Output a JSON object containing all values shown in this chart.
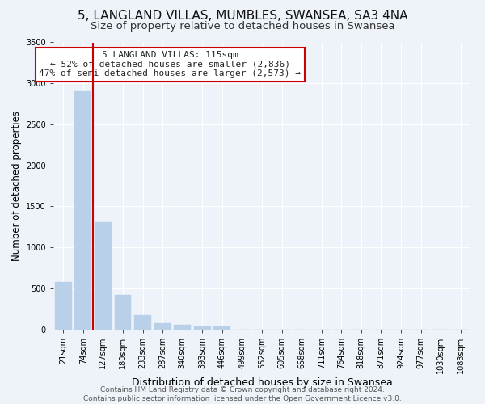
{
  "title": "5, LANGLAND VILLAS, MUMBLES, SWANSEA, SA3 4NA",
  "subtitle": "Size of property relative to detached houses in Swansea",
  "xlabel": "Distribution of detached houses by size in Swansea",
  "ylabel": "Number of detached properties",
  "bar_labels": [
    "21sqm",
    "74sqm",
    "127sqm",
    "180sqm",
    "233sqm",
    "287sqm",
    "340sqm",
    "393sqm",
    "446sqm",
    "499sqm",
    "552sqm",
    "605sqm",
    "658sqm",
    "711sqm",
    "764sqm",
    "818sqm",
    "871sqm",
    "924sqm",
    "977sqm",
    "1030sqm",
    "1083sqm"
  ],
  "bar_values": [
    580,
    2900,
    1310,
    420,
    175,
    70,
    55,
    35,
    30,
    0,
    0,
    0,
    0,
    0,
    0,
    0,
    0,
    0,
    0,
    0,
    0
  ],
  "bar_color": "#b8d0e8",
  "bar_edge_color": "#b8d0e8",
  "vline_x": 1.5,
  "vline_color": "#cc0000",
  "ylim": [
    0,
    3500
  ],
  "yticks": [
    0,
    500,
    1000,
    1500,
    2000,
    2500,
    3000,
    3500
  ],
  "annotation_box_text_line1": "5 LANGLAND VILLAS: 115sqm",
  "annotation_box_text_line2": "← 52% of detached houses are smaller (2,836)",
  "annotation_box_text_line3": "47% of semi-detached houses are larger (2,573) →",
  "annotation_box_color": "#cc0000",
  "background_color": "#eef2f9",
  "grid_color": "#ffffff",
  "footer_line1": "Contains HM Land Registry data © Crown copyright and database right 2024.",
  "footer_line2": "Contains public sector information licensed under the Open Government Licence v3.0.",
  "title_fontsize": 11,
  "subtitle_fontsize": 9.5,
  "xlabel_fontsize": 9,
  "ylabel_fontsize": 8.5,
  "tick_fontsize": 7,
  "footer_fontsize": 6.5,
  "annot_fontsize": 8
}
